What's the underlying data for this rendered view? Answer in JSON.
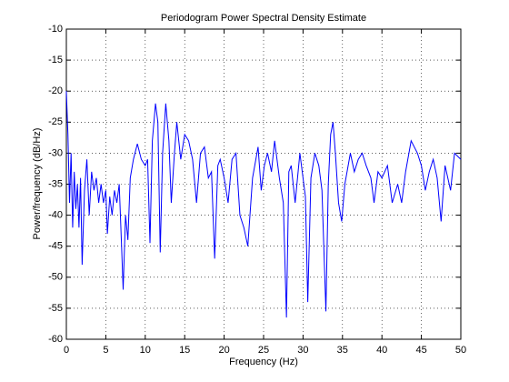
{
  "chart_data": {
    "type": "line",
    "title": "Periodogram Power Spectral Density Estimate",
    "x_label": "Frequency (Hz)",
    "y_label": "Power/frequency (dB/Hz)",
    "xlim": [
      0,
      50
    ],
    "ylim": [
      -60,
      -10
    ],
    "xticks": [
      0,
      5,
      10,
      15,
      20,
      25,
      30,
      35,
      40,
      45,
      50
    ],
    "yticks": [
      -60,
      -55,
      -50,
      -45,
      -40,
      -35,
      -30,
      -25,
      -20,
      -15,
      -10
    ],
    "grid": true,
    "x": [
      0,
      0.2,
      0.4,
      0.6,
      0.8,
      1.0,
      1.2,
      1.4,
      1.6,
      1.8,
      2.0,
      2.3,
      2.6,
      2.9,
      3.2,
      3.5,
      3.8,
      4.1,
      4.4,
      4.7,
      5.0,
      5.2,
      5.5,
      5.8,
      6.1,
      6.4,
      6.7,
      7.0,
      7.2,
      7.5,
      7.8,
      8.1,
      8.5,
      9.0,
      9.5,
      10.0,
      10.3,
      10.6,
      10.9,
      11.3,
      11.6,
      11.9,
      12.2,
      12.6,
      13.0,
      13.3,
      13.7,
      14.0,
      14.5,
      15.0,
      15.5,
      16.0,
      16.5,
      17.0,
      17.5,
      18.0,
      18.4,
      18.8,
      19.2,
      19.5,
      20.0,
      20.5,
      21.0,
      21.5,
      22.0,
      22.5,
      23.0,
      23.6,
      24.3,
      24.7,
      25.1,
      25.5,
      26.0,
      26.4,
      27.0,
      27.5,
      27.9,
      28.2,
      28.5,
      29.0,
      29.6,
      30.3,
      30.6,
      31.0,
      31.5,
      32.0,
      32.4,
      32.9,
      33.2,
      33.5,
      33.8,
      34.1,
      34.5,
      34.9,
      35.3,
      36.0,
      36.5,
      37.0,
      37.5,
      38.0,
      38.6,
      39.0,
      39.5,
      40.0,
      40.7,
      41.3,
      42.0,
      42.5,
      43.0,
      43.7,
      44.5,
      45.0,
      45.5,
      46.0,
      46.5,
      47.0,
      47.5,
      48.0,
      48.7,
      49.2,
      50.0
    ],
    "series": [
      {
        "color": "#0000ff",
        "values": [
          -20,
          -27,
          -38,
          -30,
          -42,
          -33,
          -39,
          -35,
          -42,
          -34,
          -48,
          -36,
          -31,
          -40,
          -33,
          -36,
          -34,
          -38,
          -35,
          -38,
          -36,
          -43,
          -37,
          -40,
          -36,
          -38,
          -35,
          -45,
          -52,
          -40,
          -44,
          -34,
          -31,
          -28.5,
          -31,
          -32,
          -31,
          -44.5,
          -28,
          -22,
          -25,
          -46,
          -30,
          -22,
          -28,
          -38,
          -30,
          -25,
          -31,
          -27,
          -28,
          -31,
          -38,
          -30,
          -29,
          -34,
          -33,
          -47,
          -32,
          -31,
          -34,
          -38,
          -31,
          -30,
          -40,
          -42,
          -45,
          -34,
          -29,
          -36,
          -32,
          -30,
          -33,
          -28,
          -34,
          -38,
          -56.5,
          -33,
          -32,
          -38,
          -30,
          -37,
          -54,
          -34,
          -30,
          -32,
          -36,
          -55.5,
          -35,
          -27,
          -25,
          -30,
          -38,
          -41,
          -35,
          -30,
          -33,
          -31,
          -30,
          -32,
          -34,
          -38,
          -33,
          -34,
          -32,
          -38,
          -35,
          -38,
          -33,
          -28,
          -30,
          -32,
          -36,
          -33,
          -31,
          -34,
          -41,
          -32,
          -36,
          -30,
          -31
        ]
      }
    ]
  }
}
